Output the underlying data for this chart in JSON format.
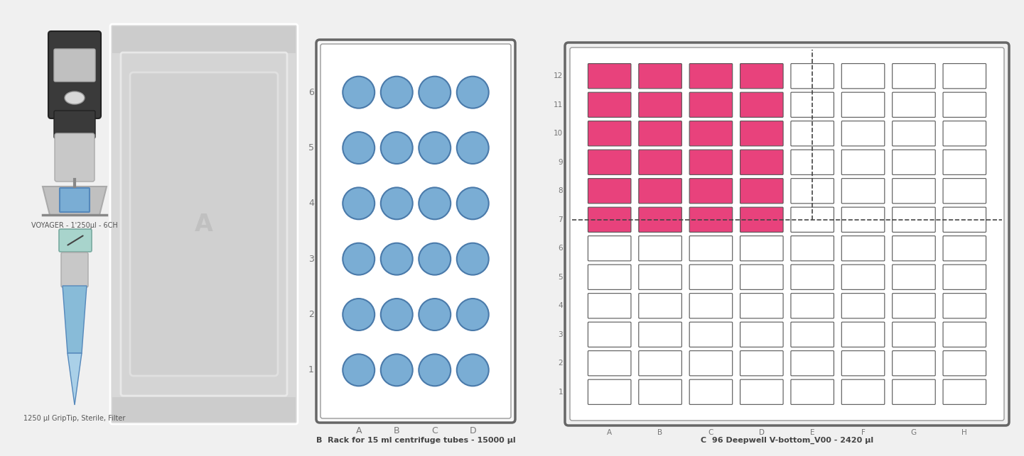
{
  "fig_width": 14.41,
  "fig_height": 6.43,
  "bg_color": "#f0f0f0",
  "voyager_label": "VOYAGER - 1'250µl - 6CH",
  "tip_label": "1250 µl GripTip, Sterile, Filter",
  "deck_label": "A",
  "rack_label": "B  Rack for 15 ml centrifuge tubes - 15000 µl",
  "plate_label": "C  96 Deepwell V-bottom_V00 - 2420 µl",
  "rack_cols": [
    "A",
    "B",
    "C",
    "D"
  ],
  "rack_rows": [
    1,
    2,
    3,
    4,
    5,
    6
  ],
  "rack_circle_color": "#7aadd4",
  "rack_circle_edge": "#4a7aaa",
  "plate_cols": [
    "A",
    "B",
    "C",
    "D",
    "E",
    "F",
    "G",
    "H"
  ],
  "plate_rows": [
    1,
    2,
    3,
    4,
    5,
    6,
    7,
    8,
    9,
    10,
    11,
    12
  ],
  "pink_cells_rows": [
    7,
    8,
    9,
    10,
    11,
    12
  ],
  "pink_cells_cols": [
    1,
    2,
    3,
    4
  ],
  "pink_color": "#e8427c",
  "well_color": "#ffffff",
  "well_edge": "#555555",
  "deck_bg": "#d8d8d8",
  "rack_bg": "#ffffff",
  "label_color": "#555555",
  "label_fontsize": 8
}
